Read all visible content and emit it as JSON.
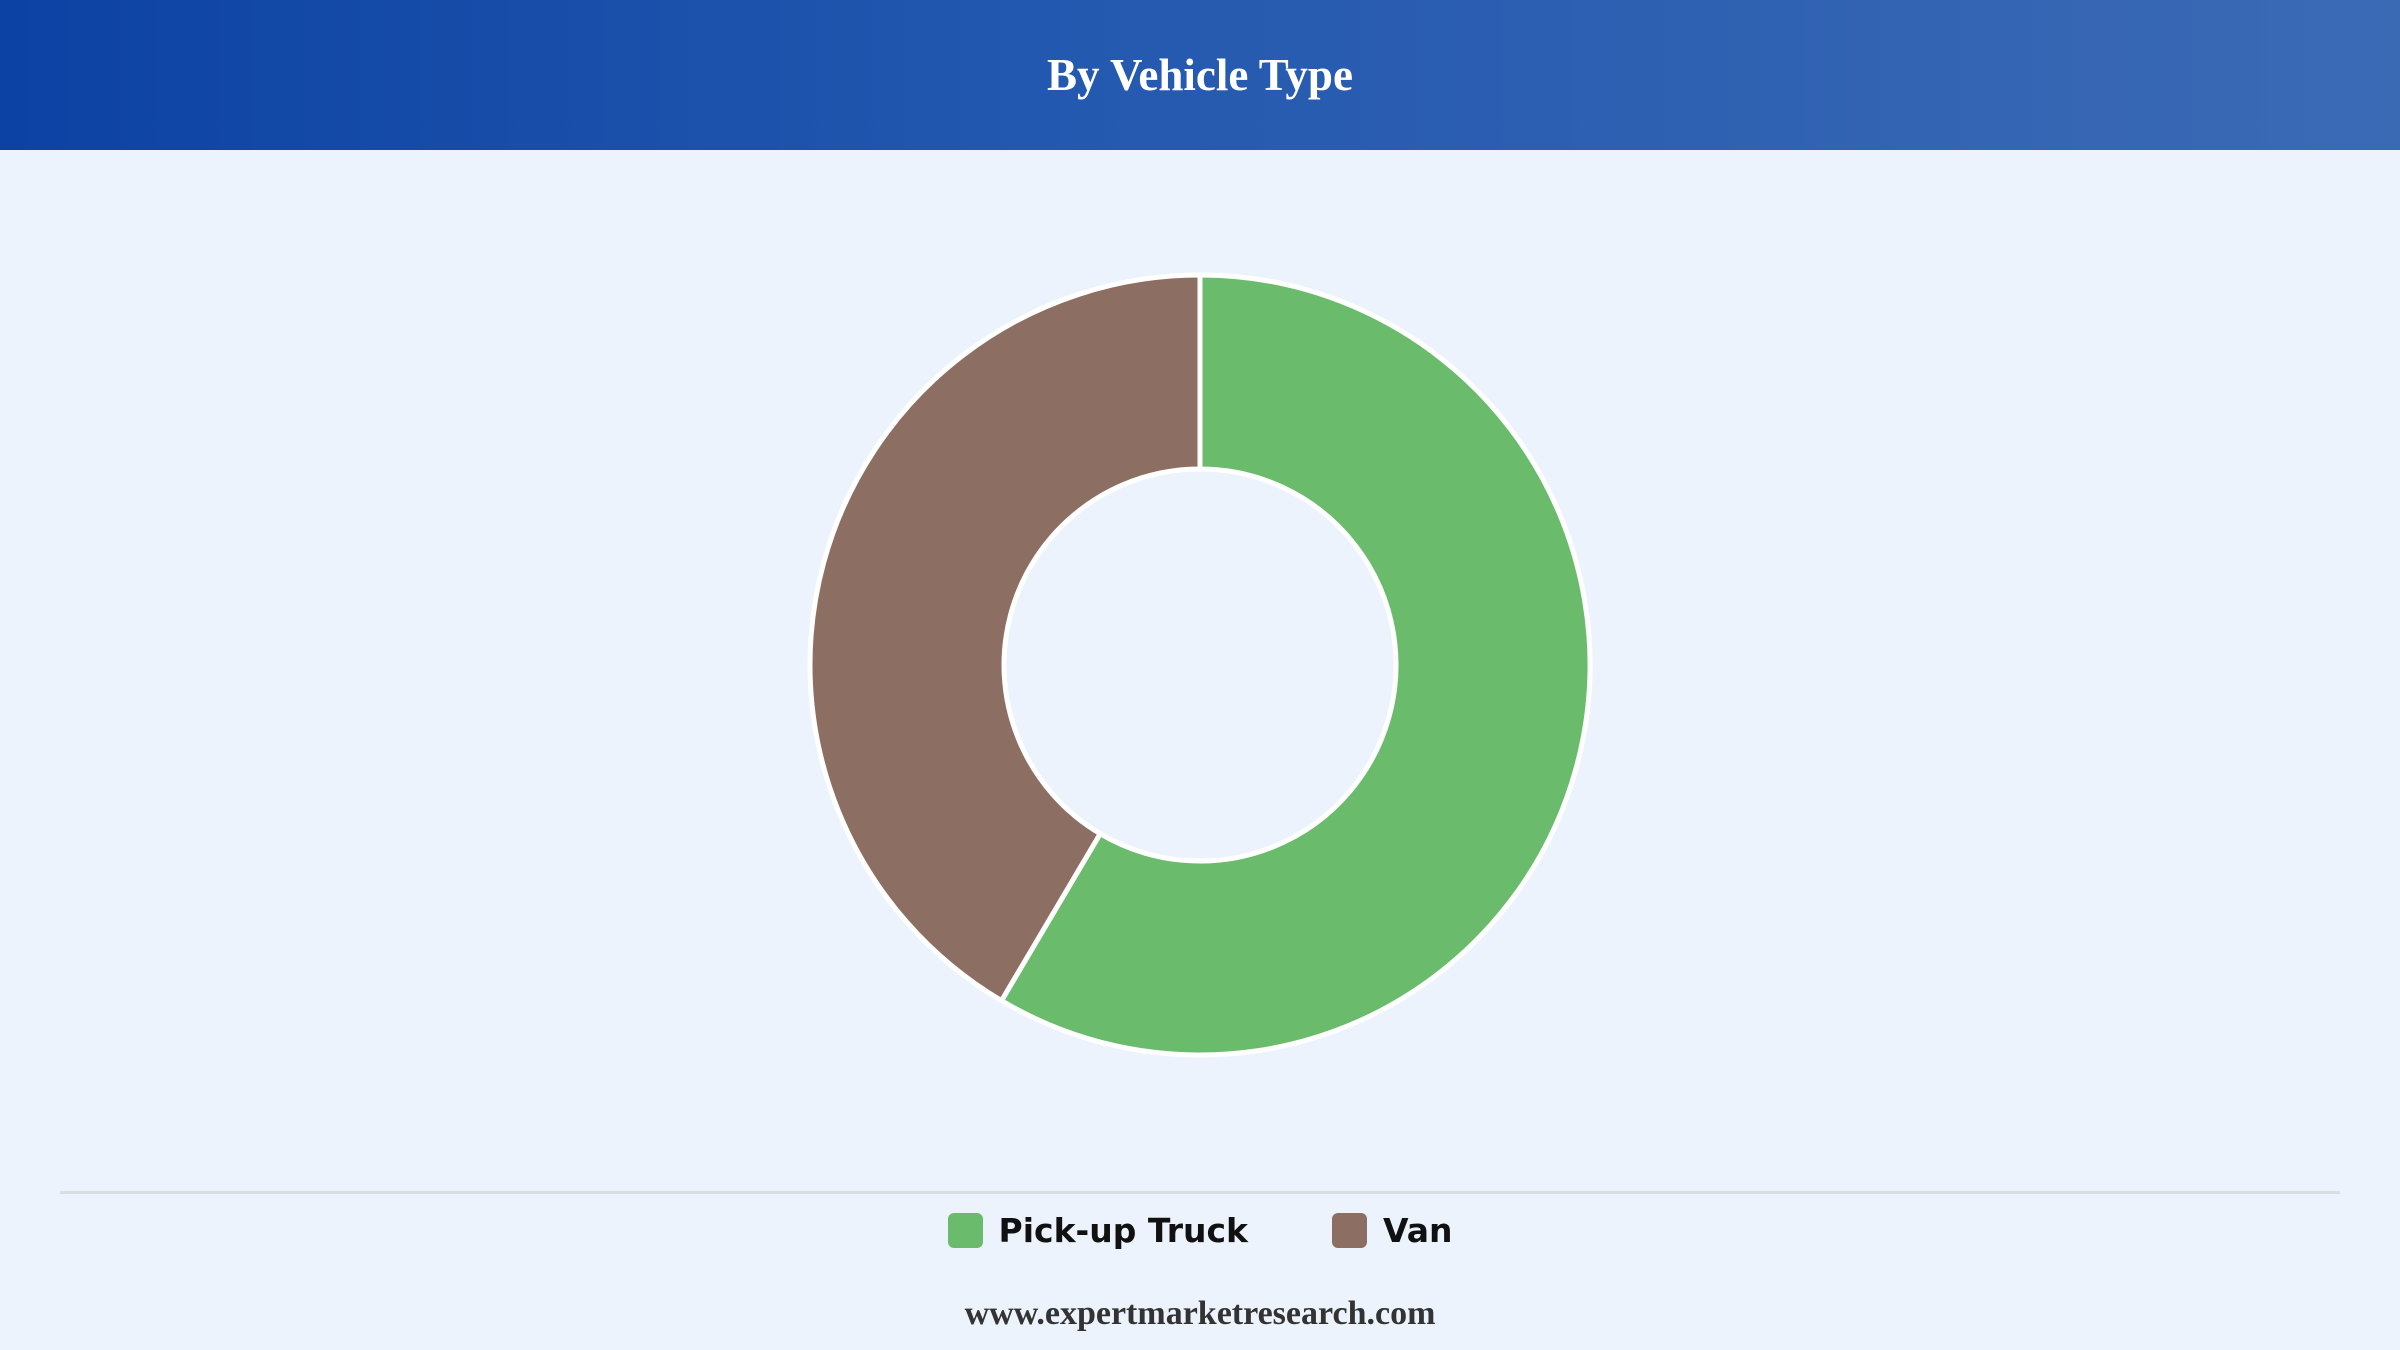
{
  "header": {
    "title": "By Vehicle Type"
  },
  "chart_data": {
    "type": "pie",
    "title": "By Vehicle Type",
    "donut": true,
    "categories": [
      "Pick-up Truck",
      "Van"
    ],
    "values": [
      58.5,
      41.5
    ],
    "colors": [
      "#6abb6c",
      "#8d6e62"
    ],
    "legend_position": "bottom"
  },
  "legend": {
    "items": [
      {
        "label": "Pick-up Truck",
        "color": "#6abb6c"
      },
      {
        "label": "Van",
        "color": "#8d6e62"
      }
    ]
  },
  "footer": {
    "text": "www.expertmarketresearch.com"
  }
}
